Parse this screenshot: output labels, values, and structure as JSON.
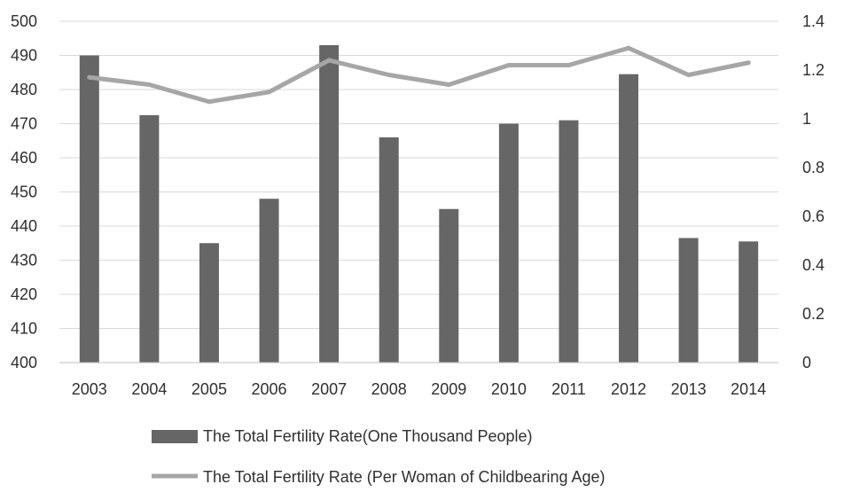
{
  "chart_data": {
    "type": "bar+line",
    "categories": [
      "2003",
      "2004",
      "2005",
      "2006",
      "2007",
      "2008",
      "2009",
      "2010",
      "2011",
      "2012",
      "2013",
      "2014"
    ],
    "series": [
      {
        "name": "The Total Fertility Rate(One Thousand People)",
        "type": "bar",
        "axis": "left",
        "color": "#666666",
        "values": [
          490,
          472.5,
          435,
          448,
          493,
          466,
          445,
          470,
          471,
          484.5,
          436.5,
          435.5
        ]
      },
      {
        "name": "The Total Fertility Rate (Per Woman of Childbearing Age)",
        "type": "line",
        "axis": "right",
        "color": "#a6a6a6",
        "values": [
          1.17,
          1.14,
          1.07,
          1.11,
          1.24,
          1.18,
          1.14,
          1.22,
          1.22,
          1.29,
          1.18,
          1.23
        ]
      }
    ],
    "y_left": {
      "min": 400,
      "max": 500,
      "ticks": [
        "400",
        "410",
        "420",
        "430",
        "440",
        "450",
        "460",
        "470",
        "480",
        "490",
        "500"
      ]
    },
    "y_right": {
      "min": 0,
      "max": 1.4,
      "ticks": [
        "0",
        "0.2",
        "0.4",
        "0.6",
        "0.8",
        "1",
        "1.2",
        "1.4"
      ]
    },
    "grid": true,
    "legend_position": "bottom"
  }
}
